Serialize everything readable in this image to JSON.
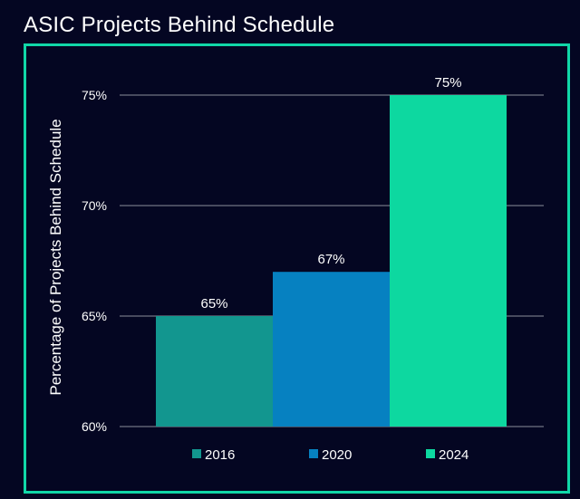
{
  "chart_data": {
    "type": "bar",
    "title": "ASIC Projects Behind Schedule",
    "xlabel": "",
    "ylabel": "Percentage of Projects Behind Schedule",
    "categories": [
      "2016",
      "2020",
      "2024"
    ],
    "values": [
      65,
      67,
      75
    ],
    "value_labels": [
      "65%",
      "67%",
      "75%"
    ],
    "colors": [
      "#12968f",
      "#0681c1",
      "#0dd8a0"
    ],
    "ylim": [
      60,
      75
    ],
    "yticks": [
      60,
      65,
      70,
      75
    ],
    "ytick_labels": [
      "60%",
      "65%",
      "70%",
      "75%"
    ],
    "grid": true,
    "legend": {
      "placement": "bottom",
      "entries": [
        "2016",
        "2020",
        "2024"
      ]
    }
  },
  "colors": {
    "background": "#040622",
    "frame": "#10d7a8",
    "gridline": "#8a8d9a",
    "text": "#ffffff"
  }
}
